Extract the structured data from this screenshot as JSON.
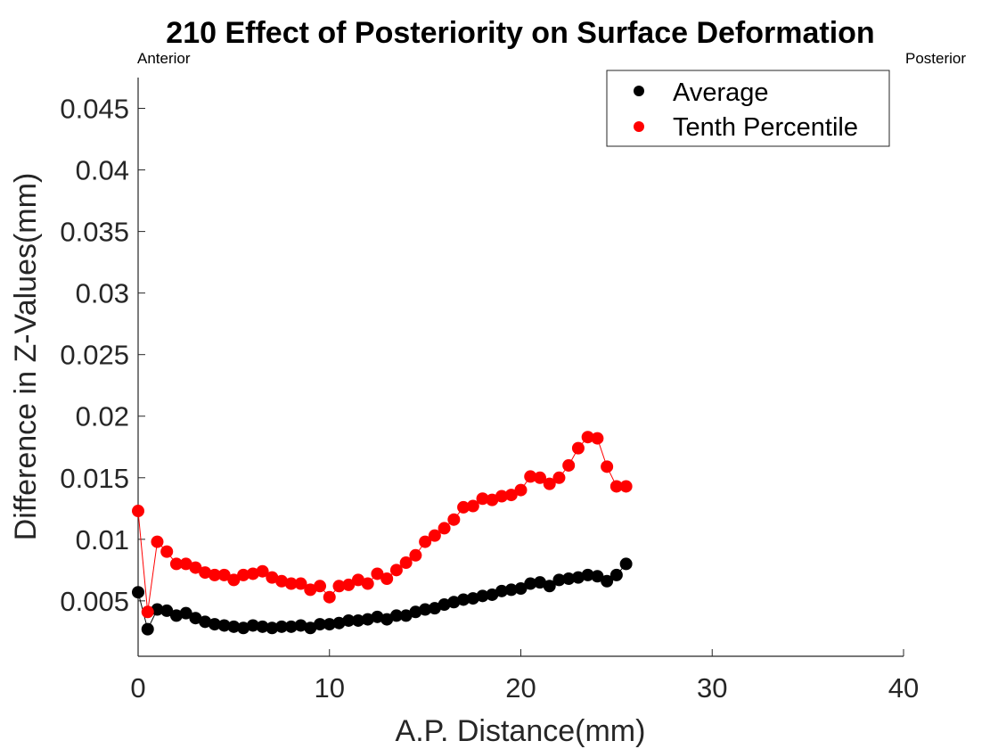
{
  "chart_data": {
    "type": "scatter",
    "title": "210  Effect of Posteriority on Surface Deformation",
    "xlabel": "A.P. Distance(mm)",
    "ylabel": "Difference in Z-Values(mm)",
    "annotations": {
      "left": "Anterior",
      "right": "Posterior"
    },
    "xlim": [
      0,
      40
    ],
    "ylim": [
      0.0005,
      0.0475
    ],
    "xticks": [
      0,
      10,
      20,
      30,
      40
    ],
    "xtick_labels": [
      "0",
      "10",
      "20",
      "30",
      "40"
    ],
    "yticks": [
      0.005,
      0.01,
      0.015,
      0.02,
      0.025,
      0.03,
      0.035,
      0.04,
      0.045
    ],
    "ytick_labels": [
      "0.005",
      "0.01",
      "0.015",
      "0.02",
      "0.025",
      "0.03",
      "0.035",
      "0.04",
      "0.045"
    ],
    "grid": false,
    "legend_position": "top-right",
    "series": [
      {
        "name": "Average",
        "color": "#000000",
        "x": [
          0.0,
          0.5,
          1.0,
          1.5,
          2.0,
          2.5,
          3.0,
          3.5,
          4.0,
          4.5,
          5.0,
          5.5,
          6.0,
          6.5,
          7.0,
          7.5,
          8.0,
          8.5,
          9.0,
          9.5,
          10.0,
          10.5,
          11.0,
          11.5,
          12.0,
          12.5,
          13.0,
          13.5,
          14.0,
          14.5,
          15.0,
          15.5,
          16.0,
          16.5,
          17.0,
          17.5,
          18.0,
          18.5,
          19.0,
          19.5,
          20.0,
          20.5,
          21.0,
          21.5,
          22.0,
          22.5,
          23.0,
          23.5,
          24.0,
          24.5,
          25.0,
          25.5
        ],
        "y": [
          0.0057,
          0.0027,
          0.0043,
          0.0042,
          0.0038,
          0.004,
          0.0036,
          0.0033,
          0.0031,
          0.003,
          0.0029,
          0.0028,
          0.003,
          0.0029,
          0.0028,
          0.0029,
          0.0029,
          0.003,
          0.0028,
          0.0031,
          0.0031,
          0.0032,
          0.0034,
          0.0034,
          0.0035,
          0.0037,
          0.0035,
          0.0038,
          0.0038,
          0.0041,
          0.0043,
          0.0044,
          0.0047,
          0.0049,
          0.0051,
          0.0052,
          0.0054,
          0.0055,
          0.0058,
          0.0059,
          0.006,
          0.0064,
          0.0065,
          0.0062,
          0.0067,
          0.0068,
          0.0069,
          0.0071,
          0.007,
          0.0066,
          0.0071,
          0.008
        ]
      },
      {
        "name": "Tenth Percentile",
        "color": "#ff0000",
        "x": [
          0.0,
          0.5,
          1.0,
          1.5,
          2.0,
          2.5,
          3.0,
          3.5,
          4.0,
          4.5,
          5.0,
          5.5,
          6.0,
          6.5,
          7.0,
          7.5,
          8.0,
          8.5,
          9.0,
          9.5,
          10.0,
          10.5,
          11.0,
          11.5,
          12.0,
          12.5,
          13.0,
          13.5,
          14.0,
          14.5,
          15.0,
          15.5,
          16.0,
          16.5,
          17.0,
          17.5,
          18.0,
          18.5,
          19.0,
          19.5,
          20.0,
          20.5,
          21.0,
          21.5,
          22.0,
          22.5,
          23.0,
          23.5,
          24.0,
          24.5,
          25.0,
          25.5
        ],
        "y": [
          0.0123,
          0.0041,
          0.0098,
          0.009,
          0.008,
          0.008,
          0.0077,
          0.0073,
          0.0071,
          0.0071,
          0.0067,
          0.0071,
          0.0072,
          0.0074,
          0.0069,
          0.0066,
          0.0064,
          0.0064,
          0.0059,
          0.0062,
          0.0053,
          0.0062,
          0.0063,
          0.0067,
          0.0064,
          0.0072,
          0.0068,
          0.0075,
          0.0081,
          0.0087,
          0.0098,
          0.0103,
          0.0109,
          0.0116,
          0.0126,
          0.0127,
          0.0133,
          0.0132,
          0.0135,
          0.0136,
          0.014,
          0.0151,
          0.015,
          0.0145,
          0.015,
          0.016,
          0.0174,
          0.0183,
          0.0182,
          0.0159,
          0.0143,
          0.0143
        ]
      }
    ]
  }
}
